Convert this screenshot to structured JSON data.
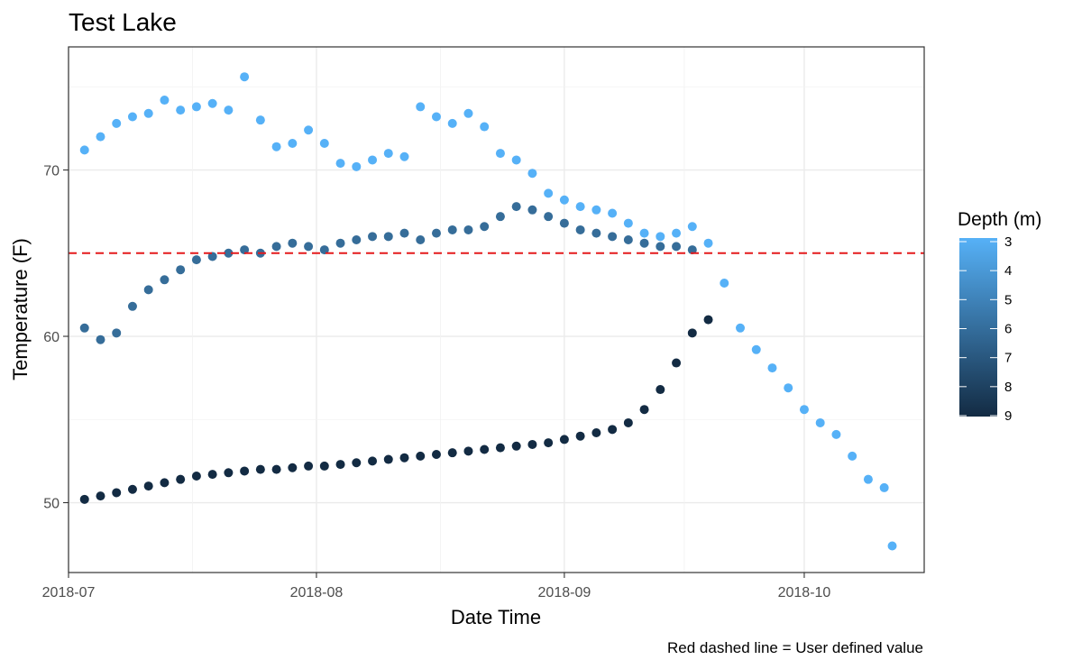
{
  "chart_data": {
    "type": "scatter",
    "title": "Test Lake",
    "xlabel": "Date Time",
    "ylabel": "Temperature (F)",
    "caption": "Red dashed line = User defined value",
    "x_ticks": [
      "2018-07",
      "2018-08",
      "2018-09",
      "2018-10"
    ],
    "y_ticks": [
      "50",
      "60",
      "70"
    ],
    "xlim": [
      "2018-07-01",
      "2018-10-16"
    ],
    "ylim": [
      45.8,
      77.4
    ],
    "grid": true,
    "legend": {
      "title": "Depth (m)",
      "position": "right",
      "labels": [
        "3",
        "4",
        "5",
        "6",
        "7",
        "8",
        "9"
      ],
      "color_low": "#56b1f7",
      "color_high": "#132b43"
    },
    "reference_line": {
      "y": 65,
      "color": "#e41a1c",
      "style": "dashed"
    },
    "series": [
      {
        "depth": 3,
        "color": "#56b1f7",
        "x": [
          "2018-07-03",
          "2018-07-05",
          "2018-07-07",
          "2018-07-09",
          "2018-07-11",
          "2018-07-13",
          "2018-07-15",
          "2018-07-17",
          "2018-07-19",
          "2018-07-21",
          "2018-07-23",
          "2018-07-25",
          "2018-07-27",
          "2018-07-29",
          "2018-07-31",
          "2018-08-02",
          "2018-08-04",
          "2018-08-06",
          "2018-08-08",
          "2018-08-10",
          "2018-08-12",
          "2018-08-14",
          "2018-08-16",
          "2018-08-18",
          "2018-08-20",
          "2018-08-22",
          "2018-08-24",
          "2018-08-26",
          "2018-08-28",
          "2018-08-30",
          "2018-09-01",
          "2018-09-03",
          "2018-09-05",
          "2018-09-07",
          "2018-09-09",
          "2018-09-11",
          "2018-09-13",
          "2018-09-15",
          "2018-09-17",
          "2018-09-19",
          "2018-09-21",
          "2018-09-23",
          "2018-09-25",
          "2018-09-27",
          "2018-09-29",
          "2018-10-01",
          "2018-10-03",
          "2018-10-05",
          "2018-10-07",
          "2018-10-09",
          "2018-10-11",
          "2018-10-12"
        ],
        "y": [
          71.2,
          72.0,
          72.8,
          73.2,
          73.4,
          74.2,
          73.6,
          73.8,
          74.0,
          73.6,
          75.6,
          73.0,
          71.4,
          71.6,
          72.4,
          71.6,
          70.4,
          70.2,
          70.6,
          71.0,
          70.8,
          73.8,
          73.2,
          72.8,
          73.4,
          72.6,
          71.0,
          70.6,
          69.8,
          68.6,
          68.2,
          67.8,
          67.6,
          67.4,
          66.8,
          66.2,
          66.0,
          66.2,
          66.6,
          65.6,
          63.2,
          60.5,
          59.2,
          58.1,
          56.9,
          55.6,
          54.8,
          54.1,
          52.8,
          51.4,
          50.9,
          47.4
        ]
      },
      {
        "depth": 6,
        "color": "#366d99",
        "x": [
          "2018-07-03",
          "2018-07-05",
          "2018-07-07",
          "2018-07-09",
          "2018-07-11",
          "2018-07-13",
          "2018-07-15",
          "2018-07-17",
          "2018-07-19",
          "2018-07-21",
          "2018-07-23",
          "2018-07-25",
          "2018-07-27",
          "2018-07-29",
          "2018-07-31",
          "2018-08-02",
          "2018-08-04",
          "2018-08-06",
          "2018-08-08",
          "2018-08-10",
          "2018-08-12",
          "2018-08-14",
          "2018-08-16",
          "2018-08-18",
          "2018-08-20",
          "2018-08-22",
          "2018-08-24",
          "2018-08-26",
          "2018-08-28",
          "2018-08-30",
          "2018-09-01",
          "2018-09-03",
          "2018-09-05",
          "2018-09-07",
          "2018-09-09",
          "2018-09-11",
          "2018-09-13",
          "2018-09-15",
          "2018-09-17"
        ],
        "y": [
          60.5,
          59.8,
          60.2,
          61.8,
          62.8,
          63.4,
          64.0,
          64.6,
          64.8,
          65.0,
          65.2,
          65.0,
          65.4,
          65.6,
          65.4,
          65.2,
          65.6,
          65.8,
          66.0,
          66.0,
          66.2,
          65.8,
          66.2,
          66.4,
          66.4,
          66.6,
          67.2,
          67.8,
          67.6,
          67.2,
          66.8,
          66.4,
          66.2,
          66.0,
          65.8,
          65.6,
          65.4,
          65.4,
          65.2
        ]
      },
      {
        "depth": 9,
        "color": "#132b43",
        "x": [
          "2018-07-03",
          "2018-07-05",
          "2018-07-07",
          "2018-07-09",
          "2018-07-11",
          "2018-07-13",
          "2018-07-15",
          "2018-07-17",
          "2018-07-19",
          "2018-07-21",
          "2018-07-23",
          "2018-07-25",
          "2018-07-27",
          "2018-07-29",
          "2018-07-31",
          "2018-08-02",
          "2018-08-04",
          "2018-08-06",
          "2018-08-08",
          "2018-08-10",
          "2018-08-12",
          "2018-08-14",
          "2018-08-16",
          "2018-08-18",
          "2018-08-20",
          "2018-08-22",
          "2018-08-24",
          "2018-08-26",
          "2018-08-28",
          "2018-08-30",
          "2018-09-01",
          "2018-09-03",
          "2018-09-05",
          "2018-09-07",
          "2018-09-09",
          "2018-09-11",
          "2018-09-13",
          "2018-09-15",
          "2018-09-17",
          "2018-09-19"
        ],
        "y": [
          50.2,
          50.4,
          50.6,
          50.8,
          51.0,
          51.2,
          51.4,
          51.6,
          51.7,
          51.8,
          51.9,
          52.0,
          52.0,
          52.1,
          52.2,
          52.2,
          52.3,
          52.4,
          52.5,
          52.6,
          52.7,
          52.8,
          52.9,
          53.0,
          53.1,
          53.2,
          53.3,
          53.4,
          53.5,
          53.6,
          53.8,
          54.0,
          54.2,
          54.4,
          54.8,
          55.6,
          56.8,
          58.4,
          60.2,
          61.0
        ]
      }
    ]
  }
}
